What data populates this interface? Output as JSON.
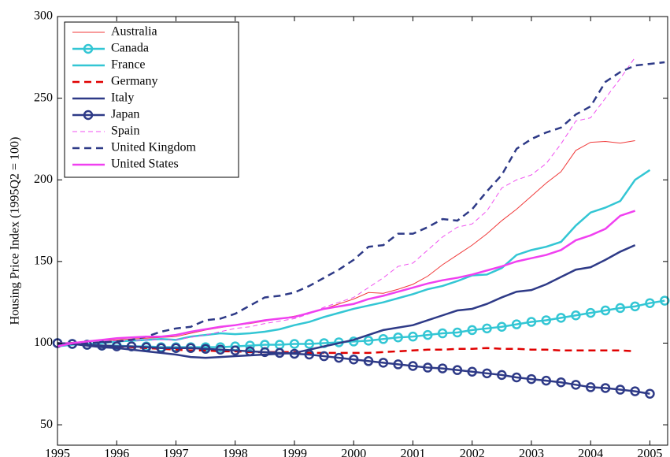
{
  "chart_data": {
    "type": "line",
    "y_label": "Housing Price Index (1995Q2 = 100)",
    "x": [
      1995,
      1995.25,
      1995.5,
      1995.75,
      1996,
      1996.25,
      1996.5,
      1996.75,
      1997,
      1997.25,
      1997.5,
      1997.75,
      1998,
      1998.25,
      1998.5,
      1998.75,
      1999,
      1999.25,
      1999.5,
      1999.75,
      2000,
      2000.25,
      2000.5,
      2000.75,
      2001,
      2001.25,
      2001.5,
      2001.75,
      2002,
      2002.25,
      2002.5,
      2002.75,
      2003,
      2003.25,
      2003.5,
      2003.75,
      2004,
      2004.25,
      2004.5,
      2004.75,
      2005,
      2005.25
    ],
    "xlim": [
      1995,
      2005.3
    ],
    "xticks": [
      1995,
      1996,
      1997,
      1998,
      1999,
      2000,
      2001,
      2002,
      2003,
      2004,
      2005
    ],
    "ylim": [
      37.5,
      300
    ],
    "yticks": [
      50,
      100,
      150,
      200,
      250,
      300
    ],
    "grid": false,
    "legend": "upper left",
    "series": [
      {
        "name": "Australia",
        "color": "#f03a3a",
        "linewidth": 1,
        "style": "solid",
        "values": [
          100,
          100.5,
          101,
          101.5,
          102,
          102.5,
          103,
          103.5,
          104,
          106,
          108,
          109.5,
          111,
          112,
          113.5,
          115,
          116.5,
          118.5,
          121,
          124,
          127,
          131,
          130.5,
          133,
          136,
          141,
          148,
          154,
          160,
          167,
          175,
          182,
          190,
          198,
          205,
          218,
          223,
          223.5,
          222.5,
          224,
          null,
          null
        ]
      },
      {
        "name": "Canada",
        "color": "#33c6d4",
        "linewidth": 2.5,
        "style": "solid",
        "marker": "o",
        "values": [
          100,
          99.5,
          99,
          98.5,
          98.5,
          98,
          98,
          97.5,
          97.5,
          97.5,
          97.5,
          97.5,
          98,
          98.5,
          99,
          99,
          99.5,
          99.5,
          100,
          100.5,
          101,
          101.5,
          102.5,
          103.5,
          104,
          105,
          106,
          106.5,
          108,
          109,
          110,
          111.5,
          113,
          114,
          115.5,
          117,
          118.5,
          120,
          121.5,
          122.5,
          124.5,
          126
        ]
      },
      {
        "name": "France",
        "color": "#33c6d4",
        "linewidth": 2.5,
        "style": "solid",
        "values": [
          98,
          99,
          99.5,
          100,
          101,
          101.5,
          102,
          102.5,
          102,
          104,
          105,
          106,
          105.5,
          106,
          107,
          108.5,
          111,
          113,
          116,
          118.5,
          121,
          123,
          125,
          127.5,
          130,
          133,
          135,
          138,
          141.5,
          142,
          146,
          154,
          157,
          159,
          162,
          172,
          180,
          183,
          187,
          200,
          206,
          null
        ]
      },
      {
        "name": "Germany",
        "color": "#e00000",
        "linewidth": 2.5,
        "style": "dashed",
        "values": [
          100,
          99.5,
          99,
          98.5,
          98,
          97.5,
          97,
          96.5,
          96,
          95.5,
          95.5,
          95,
          95,
          94.5,
          94.5,
          94.5,
          94.5,
          94,
          94,
          94,
          94,
          94,
          94.5,
          95,
          95.5,
          96,
          96,
          96.5,
          96.5,
          97,
          96.5,
          96.5,
          96,
          96,
          95.5,
          95.5,
          95.5,
          95.5,
          95.5,
          95,
          null,
          null
        ]
      },
      {
        "name": "Italy",
        "color": "#2e3a87",
        "linewidth": 2.5,
        "style": "solid",
        "values": [
          100,
          99.5,
          98.5,
          97.5,
          97,
          96,
          95,
          94,
          93,
          91.5,
          91,
          91.5,
          92,
          92.5,
          93,
          93.5,
          94,
          96,
          98,
          100,
          102,
          105,
          108,
          109.5,
          111,
          114,
          117,
          120,
          121,
          124,
          128,
          131.5,
          132.5,
          136,
          140.5,
          145,
          146.5,
          151,
          156,
          160,
          null,
          null
        ]
      },
      {
        "name": "Japan",
        "color": "#2e3a87",
        "linewidth": 2.5,
        "style": "solid",
        "marker": "o",
        "values": [
          100,
          99.5,
          99,
          98.5,
          98,
          98,
          97.5,
          97,
          97,
          97,
          96.5,
          96,
          95.5,
          95,
          94.5,
          94,
          93.5,
          93,
          92,
          91,
          90,
          89,
          88,
          87,
          86,
          85,
          84.5,
          83.5,
          82.5,
          81.5,
          80.5,
          79,
          78,
          77,
          76,
          74.5,
          73,
          72.5,
          71.5,
          70.5,
          69,
          null
        ]
      },
      {
        "name": "Spain",
        "color": "#f050f0",
        "linewidth": 1,
        "style": "dashed",
        "values": [
          100,
          100.5,
          101,
          101.5,
          101.5,
          101.5,
          102,
          102,
          102,
          103.5,
          105,
          107,
          109,
          110,
          112,
          113.5,
          115,
          118,
          122,
          125,
          128,
          134,
          140,
          147,
          149,
          157,
          165,
          171,
          173,
          181,
          195,
          200,
          203,
          210,
          222,
          236,
          238,
          250,
          262,
          275,
          null,
          null
        ]
      },
      {
        "name": "United Kingdom",
        "color": "#2e3a87",
        "linewidth": 2.5,
        "style": "dashed",
        "values": [
          99,
          100,
          100,
          100.5,
          101,
          102,
          104,
          107,
          109,
          110,
          114,
          115,
          118,
          123,
          128,
          129,
          131,
          135,
          140,
          145,
          151,
          159,
          160,
          167,
          167,
          171,
          176,
          175,
          182,
          193,
          203,
          219,
          225,
          229,
          232,
          240,
          245,
          260,
          266,
          270,
          271,
          272
        ]
      },
      {
        "name": "United States",
        "color": "#f040f0",
        "linewidth": 2.5,
        "style": "solid",
        "values": [
          98,
          100,
          101,
          102,
          103,
          103.5,
          104,
          104,
          105,
          107,
          108.5,
          110,
          111,
          112.5,
          114,
          115,
          116,
          118.5,
          121,
          122.5,
          124,
          127,
          129,
          131.5,
          134,
          136.5,
          138.5,
          140,
          142,
          144.5,
          147,
          150,
          152,
          154,
          157,
          163,
          166,
          170,
          178,
          181,
          null,
          null
        ]
      }
    ]
  }
}
